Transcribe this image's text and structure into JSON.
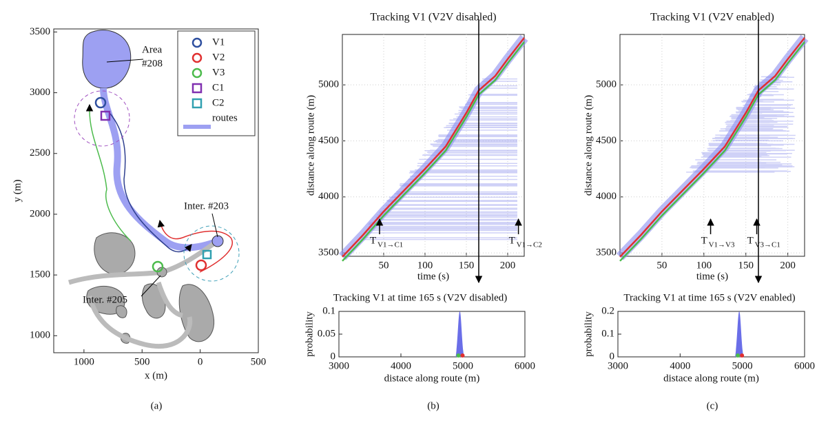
{
  "panels": [
    {
      "caption": "(a)",
      "xlabel": "x (m)",
      "ylabel": "y (m)",
      "xlim": [
        -1260,
        500
      ],
      "ylim": [
        860,
        3525
      ],
      "xticks": [
        {
          "value": -1000,
          "label": "1000"
        },
        {
          "value": -500,
          "label": "500"
        },
        0,
        500
      ],
      "yticks": [
        1000,
        1500,
        2000,
        2500,
        3000,
        3500
      ],
      "legend": [
        "V1",
        "V2",
        "V3",
        "C1",
        "C2",
        "routes"
      ],
      "annotations": [
        "Area",
        "#208",
        "Inter. #203",
        "Inter. #205"
      ]
    },
    {
      "caption": "(b)",
      "title": "Tracking V1 (V2V disabled)",
      "xlabel": "time (s)",
      "ylabel": "distance along route (m)",
      "xlim": [
        0,
        220
      ],
      "ylim": [
        3470,
        5450
      ],
      "xticks": [
        50,
        100,
        150,
        200
      ],
      "yticks": [
        3500,
        4000,
        4500,
        5000
      ],
      "grid": true,
      "track_x": [
        0,
        25,
        50,
        75,
        100,
        125,
        150,
        165,
        185,
        200,
        220
      ],
      "track_y": [
        3465,
        3660,
        3870,
        4060,
        4250,
        4450,
        4750,
        4950,
        5080,
        5230,
        5420
      ],
      "cursor_time": 165,
      "arrow_labels": [
        {
          "base": "T",
          "sub": "V1→C1",
          "time": 45
        },
        {
          "base": "T",
          "sub": "V1→C2",
          "time": 213
        }
      ],
      "hist": {
        "title": "Tracking V1 at time 165 s (V2V disabled)",
        "xlabel": "distace along route (m)",
        "ylabel": "probability",
        "xlim": [
          3000,
          6000
        ],
        "ylim": [
          0,
          0.1
        ],
        "xticks": [
          3000,
          4000,
          5000,
          6000
        ],
        "yticks": [
          0,
          0.05,
          0.1
        ],
        "peak": 4950,
        "peak_prob": 0.1
      }
    },
    {
      "caption": "(c)",
      "title": "Tracking V1 (V2V enabled)",
      "xlabel": "time (s)",
      "ylabel": "distance along route (m)",
      "xlim": [
        0,
        220
      ],
      "ylim": [
        3470,
        5450
      ],
      "xticks": [
        50,
        100,
        150,
        200
      ],
      "yticks": [
        3500,
        4000,
        4500,
        5000
      ],
      "grid": true,
      "track_x": [
        0,
        25,
        50,
        75,
        100,
        125,
        150,
        165,
        185,
        200,
        220
      ],
      "track_y": [
        3465,
        3660,
        3870,
        4060,
        4250,
        4450,
        4750,
        4950,
        5080,
        5230,
        5420
      ],
      "cursor_time": 165,
      "arrow_labels": [
        {
          "base": "T",
          "sub": "V1→V3",
          "time": 108
        },
        {
          "base": "T",
          "sub": "V3→C1",
          "time": 163
        }
      ],
      "hist": {
        "title": "Tracking V1 at time 165 s (V2V enabled)",
        "xlabel": "distace along route (m)",
        "ylabel": "probability",
        "xlim": [
          3000,
          6000
        ],
        "ylim": [
          0,
          0.2
        ],
        "xticks": [
          3000,
          4000,
          5000,
          6000
        ],
        "yticks": [
          0,
          0.1,
          0.2
        ],
        "peak": 4950,
        "peak_prob": 0.2
      }
    }
  ]
}
